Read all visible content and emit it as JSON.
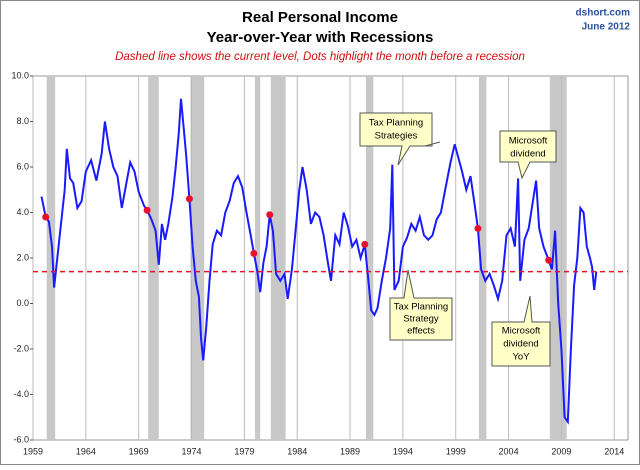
{
  "chart_data": {
    "type": "line",
    "title": "Real Personal Income",
    "subtitle": "Year-over-Year with Recessions",
    "note": "Dashed line shows the current level, Dots highlight the month before a recession",
    "source": "dshort.com",
    "date": "June 2012",
    "color": "#1a1aff",
    "x": [
      1959.8,
      1960.2,
      1960.5,
      1960.8,
      1961.0,
      1961.3,
      1961.6,
      1962.0,
      1962.2,
      1962.5,
      1962.8,
      1963.2,
      1963.6,
      1964.0,
      1964.5,
      1965.0,
      1965.5,
      1965.8,
      1966.2,
      1966.6,
      1967.0,
      1967.4,
      1967.8,
      1968.2,
      1968.6,
      1969.0,
      1969.5,
      1969.8,
      1970.2,
      1970.6,
      1970.9,
      1971.2,
      1971.5,
      1971.8,
      1972.2,
      1972.5,
      1972.8,
      1973.0,
      1973.2,
      1973.5,
      1973.8,
      1974.1,
      1974.4,
      1974.7,
      1974.9,
      1975.1,
      1975.4,
      1975.7,
      1976.0,
      1976.4,
      1976.8,
      1977.2,
      1977.6,
      1978.0,
      1978.4,
      1978.8,
      1979.2,
      1979.6,
      1979.9,
      1980.2,
      1980.5,
      1980.8,
      1981.1,
      1981.4,
      1981.7,
      1982.0,
      1982.4,
      1982.8,
      1983.1,
      1983.5,
      1983.9,
      1984.2,
      1984.5,
      1984.9,
      1985.3,
      1985.7,
      1986.1,
      1986.5,
      1986.9,
      1987.2,
      1987.6,
      1988.0,
      1988.4,
      1988.8,
      1989.2,
      1989.6,
      1990.0,
      1990.4,
      1990.7,
      1991.0,
      1991.3,
      1991.6,
      1992.0,
      1992.4,
      1992.8,
      1993.0,
      1993.2,
      1993.6,
      1994.0,
      1994.4,
      1994.8,
      1995.2,
      1995.6,
      1996.0,
      1996.4,
      1996.8,
      1997.2,
      1997.6,
      1998.0,
      1998.5,
      1998.9,
      1999.2,
      1999.6,
      2000.0,
      2000.4,
      2000.8,
      2001.1,
      2001.4,
      2001.8,
      2002.2,
      2002.6,
      2003.0,
      2003.4,
      2003.8,
      2004.2,
      2004.6,
      2004.9,
      2005.1,
      2005.5,
      2005.9,
      2006.3,
      2006.6,
      2006.9,
      2007.3,
      2007.8,
      2008.1,
      2008.4,
      2008.7,
      2009.0,
      2009.3,
      2009.6,
      2009.9,
      2010.2,
      2010.5,
      2010.8,
      2011.1,
      2011.4,
      2011.7,
      2011.9,
      2012.1,
      2012.3
    ],
    "values": [
      4.7,
      3.8,
      3.6,
      2.5,
      0.7,
      2.0,
      3.3,
      5.0,
      6.8,
      5.5,
      5.3,
      4.2,
      4.5,
      5.8,
      6.3,
      5.4,
      6.6,
      8.0,
      6.8,
      6.0,
      5.6,
      4.2,
      5.2,
      6.2,
      5.8,
      4.9,
      4.3,
      4.1,
      3.7,
      3.2,
      1.7,
      3.5,
      2.8,
      3.5,
      4.7,
      6.0,
      7.5,
      9.0,
      8.0,
      6.5,
      4.6,
      2.5,
      1.0,
      0.3,
      -1.5,
      -2.5,
      -1.0,
      1.0,
      2.6,
      3.2,
      3.0,
      4.0,
      4.5,
      5.3,
      5.6,
      5.1,
      4.0,
      3.0,
      2.2,
      1.5,
      0.5,
      1.8,
      2.5,
      3.9,
      3.2,
      1.3,
      1.0,
      1.3,
      0.2,
      1.5,
      3.5,
      5.0,
      6.0,
      5.0,
      3.5,
      4.0,
      3.8,
      3.0,
      1.8,
      1.0,
      3.0,
      2.6,
      4.0,
      3.4,
      2.5,
      2.8,
      2.0,
      2.6,
      1.2,
      -0.3,
      -0.5,
      -0.2,
      1.0,
      2.0,
      3.3,
      6.1,
      0.6,
      1.0,
      2.5,
      2.9,
      3.5,
      3.2,
      3.8,
      3.0,
      2.8,
      3.0,
      3.7,
      4.0,
      5.0,
      6.2,
      7.0,
      6.5,
      5.8,
      5.0,
      5.6,
      4.3,
      3.3,
      1.5,
      1.0,
      1.3,
      0.8,
      0.2,
      1.0,
      3.0,
      3.3,
      2.5,
      5.5,
      1.0,
      2.8,
      3.3,
      4.5,
      5.4,
      3.3,
      2.5,
      1.9,
      1.5,
      3.2,
      0.0,
      -2.0,
      -5.0,
      -5.2,
      -2.0,
      0.8,
      2.0,
      4.2,
      4.0,
      2.5,
      2.0,
      1.6,
      0.6,
      1.4
    ],
    "markers": {
      "color": "#e8102a",
      "x": [
        1960.2,
        1969.8,
        1973.8,
        1979.9,
        1981.4,
        1990.4,
        2001.1,
        2007.8
      ],
      "values": [
        3.8,
        4.1,
        4.6,
        2.2,
        3.9,
        2.6,
        3.3,
        1.9
      ]
    },
    "recessions": [
      [
        1960.3,
        1961.1
      ],
      [
        1969.9,
        1970.9
      ],
      [
        1973.9,
        1975.2
      ],
      [
        1980.0,
        1980.5
      ],
      [
        1981.5,
        1982.9
      ],
      [
        1990.5,
        1991.2
      ],
      [
        2001.2,
        2001.9
      ],
      [
        2007.9,
        2009.5
      ]
    ],
    "current_level": 1.4,
    "current_level_color": "#e8102a",
    "xlim": [
      1959,
      2015.3
    ],
    "ylim": [
      -6,
      10
    ],
    "xticks": [
      1959,
      1964,
      1969,
      1974,
      1979,
      1984,
      1989,
      1994,
      1999,
      2004,
      2009,
      2014
    ],
    "yticks": [
      {
        "value": -6,
        "label": "-6.0"
      },
      {
        "value": -4,
        "label": "-4.0"
      },
      {
        "value": -2,
        "label": "-2.0"
      },
      {
        "value": 0,
        "label": "0.0"
      },
      {
        "value": 2,
        "label": "2.0"
      },
      {
        "value": 4,
        "label": "4.0"
      },
      {
        "value": 6,
        "label": "6.0"
      },
      {
        "value": 8,
        "label": "8.0"
      },
      {
        "value": 10,
        "label": "10.0"
      }
    ],
    "grid": true,
    "annotations": [
      {
        "lines": [
          "Tax Planning",
          "Strategies"
        ]
      },
      {
        "lines": [
          "Microsoft",
          "dividend"
        ]
      },
      {
        "lines": [
          "Tax Planning",
          "Strategy",
          "effects"
        ]
      },
      {
        "lines": [
          "Microsoft",
          "dividend",
          "YoY"
        ]
      }
    ]
  }
}
